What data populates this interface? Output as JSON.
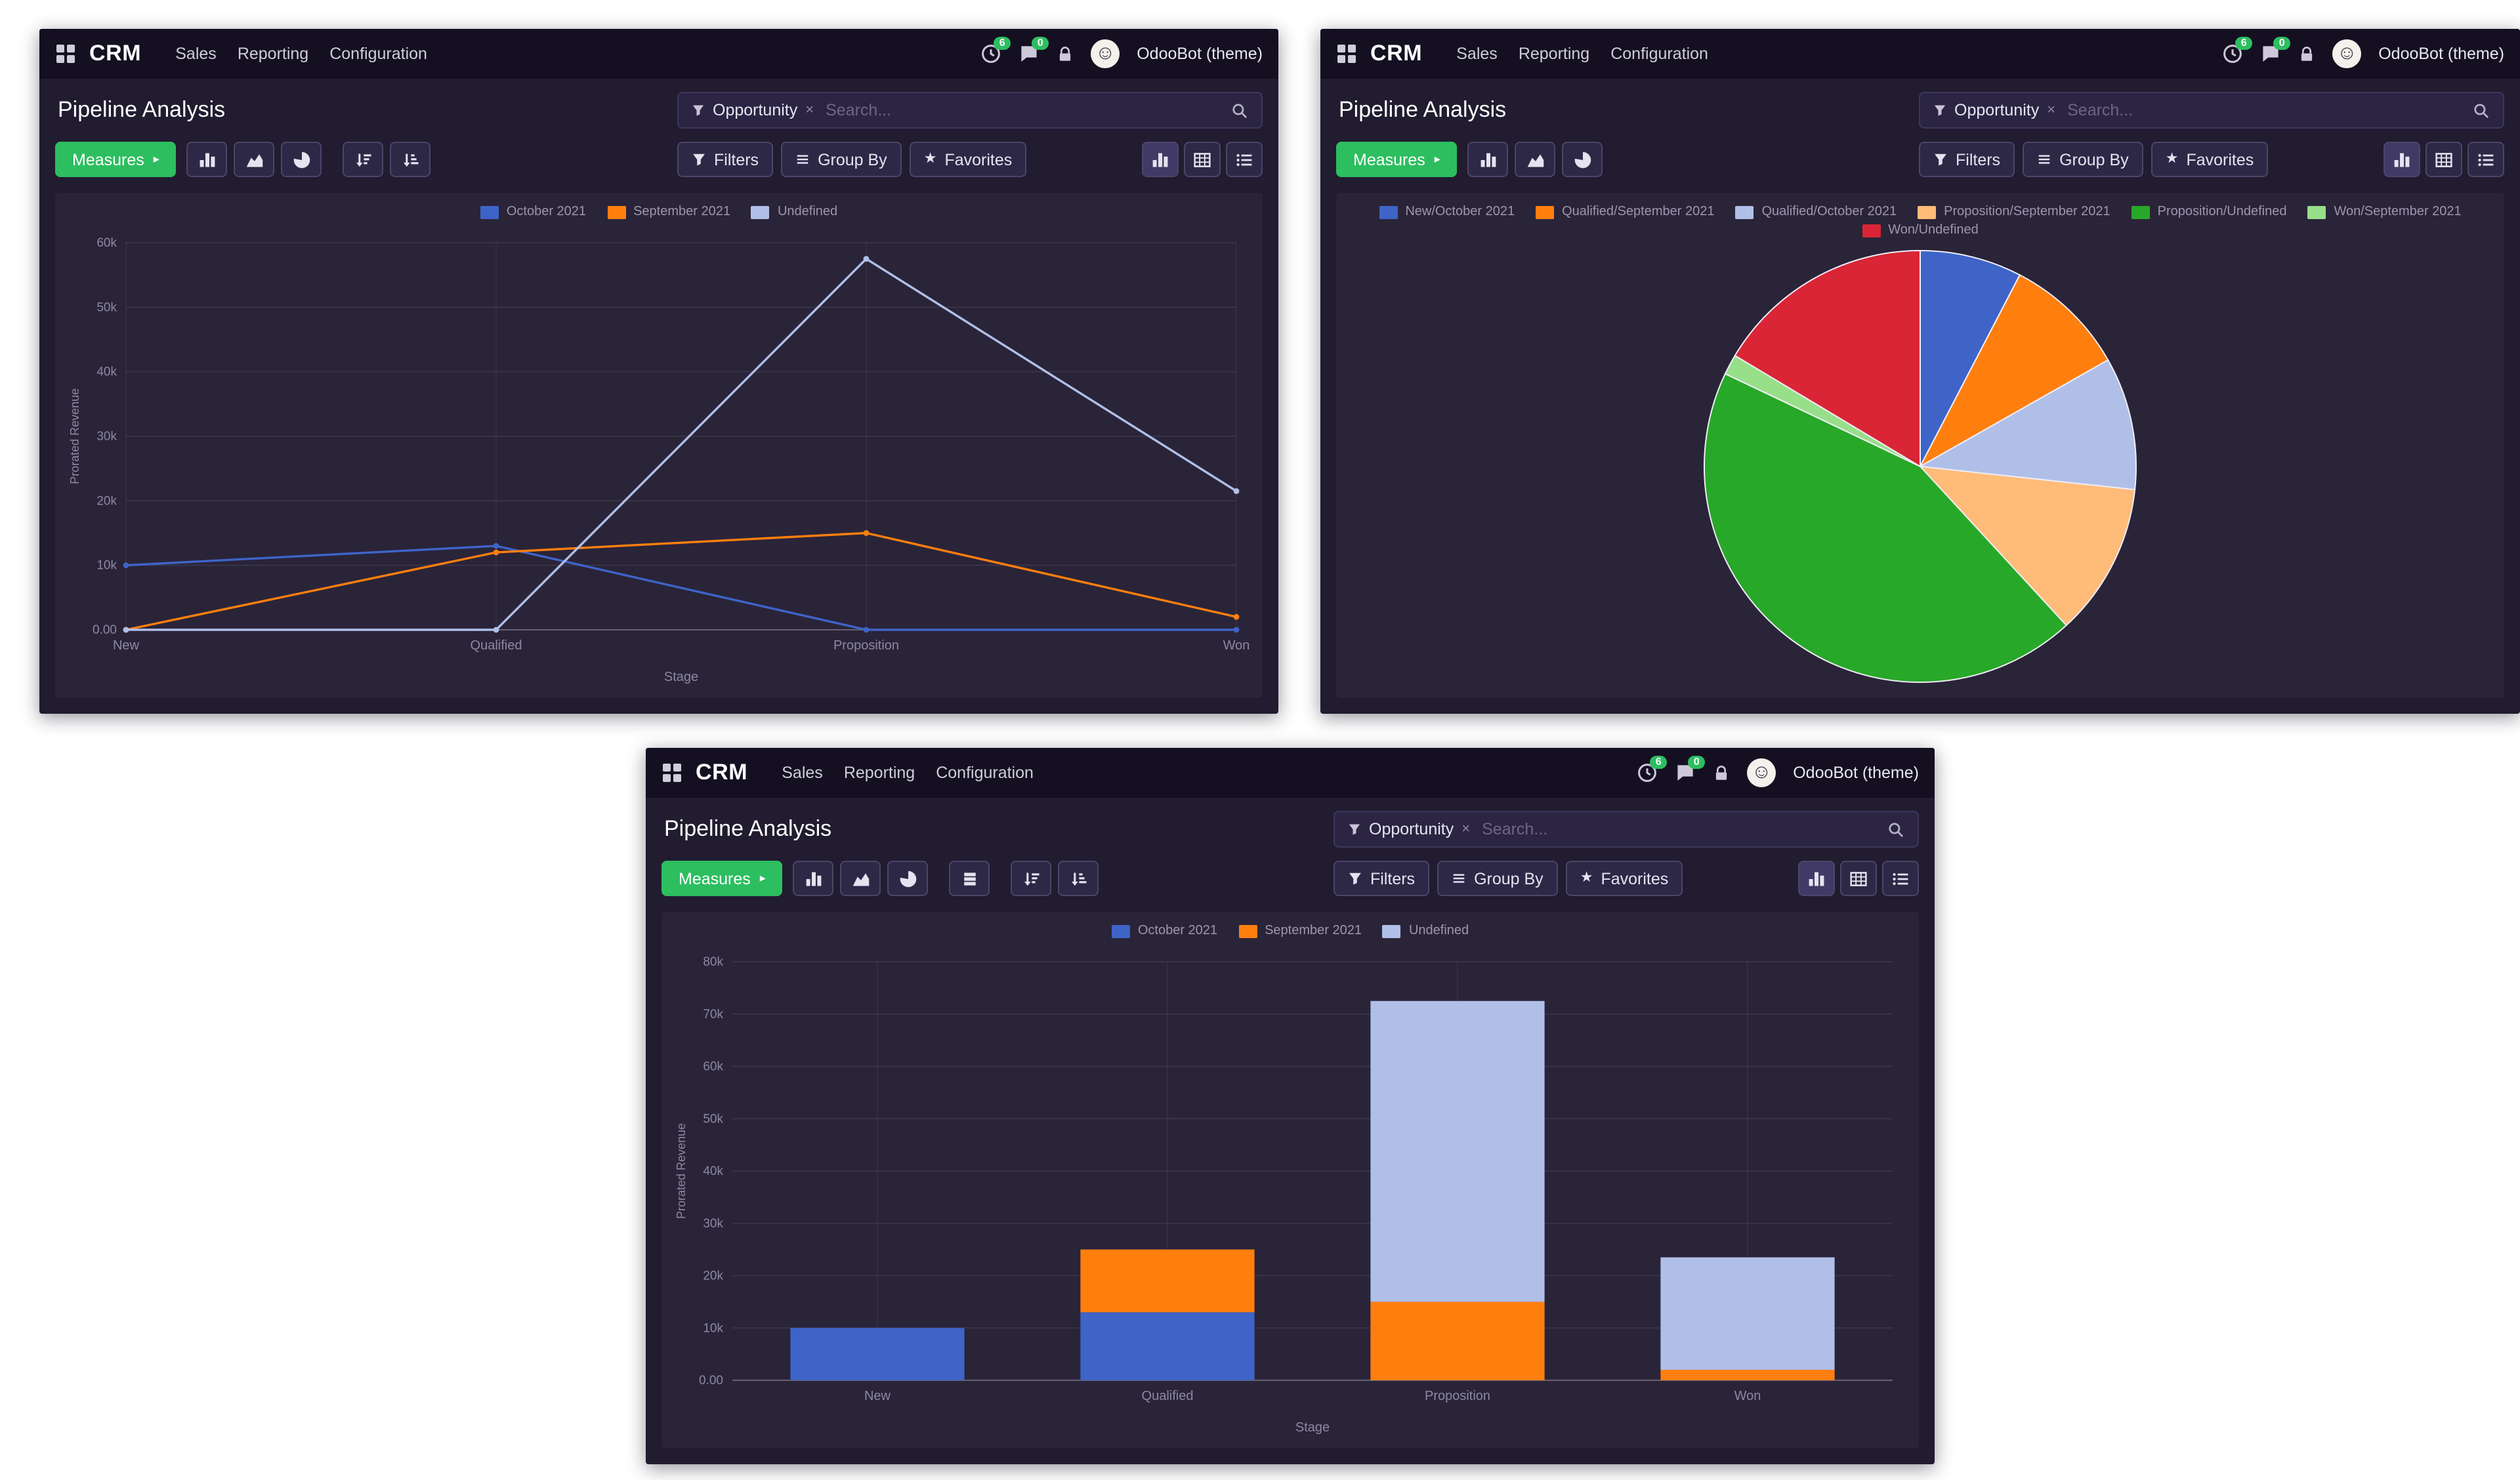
{
  "common": {
    "app_name": "CRM",
    "menus": [
      "Sales",
      "Reporting",
      "Configuration"
    ],
    "systray": {
      "badges": [
        "6",
        "0"
      ]
    },
    "user_name": "OdooBot (theme)",
    "page_title": "Pipeline Analysis",
    "search": {
      "facet": "Opportunity",
      "placeholder": "Search...",
      "remove_symbol": "×"
    },
    "toolbar": {
      "measures": "Measures",
      "measures_caret": "▸",
      "filters": "Filters",
      "group_by": "Group By",
      "favorites": "Favorites",
      "favorites_star": "★"
    },
    "colors": {
      "accent_green": "#2dbe60",
      "navbar_bg": "#141021",
      "content_bg": "#211c2f",
      "panel_bg": "#2a2439",
      "series_blue": "#3e64c8",
      "series_orange": "#ff7f0e",
      "series_lightblue": "#b0bfe8",
      "series_peach": "#ffbb78",
      "series_green": "#28a828",
      "series_lightgreen": "#98df8a",
      "series_red": "#d92535"
    }
  },
  "icons": {
    "avatar_face": "☺",
    "apps-menu-icon": "grid-of-squares",
    "activities-icon": "clock",
    "messages-icon": "chat-bubble",
    "lock-icon": "padlock",
    "search-icon": "magnifier",
    "facet-filter-icon": "funnel",
    "filter-icon": "funnel",
    "group-by-icon": "horizontal-bars",
    "star-icon": "star",
    "bar-chart-icon": "vertical-bars",
    "line-chart-icon": "area-curve",
    "pie-chart-icon": "pie",
    "stacked-icon": "stacked-layers",
    "sort-desc-icon": "arrow-down-bars-descending",
    "sort-asc-icon": "arrow-down-bars-ascending",
    "pivot-view-icon": "table-grid",
    "list-view-icon": "bulleted-list"
  },
  "windows": [
    {
      "name": "line-chart-window",
      "chart_data": {
        "type": "line",
        "title": "",
        "categories": [
          "New",
          "Qualified",
          "Proposition",
          "Won"
        ],
        "series": [
          {
            "name": "October 2021",
            "color": "#3e64c8",
            "values": [
              10000,
              13000,
              0,
              0
            ]
          },
          {
            "name": "September 2021",
            "color": "#ff7f0e",
            "values": [
              0,
              12000,
              15000,
              2000
            ]
          },
          {
            "name": "Undefined",
            "color": "#b0bfe8",
            "values": [
              0,
              0,
              57500,
              21500
            ]
          }
        ],
        "xlabel": "Stage",
        "ylabel": "Prorated Revenue",
        "ylim": [
          0,
          60000
        ],
        "yticks": [
          {
            "v": 0,
            "label": "0.00"
          },
          {
            "v": 10000,
            "label": "10k"
          },
          {
            "v": 20000,
            "label": "20k"
          },
          {
            "v": 30000,
            "label": "30k"
          },
          {
            "v": 40000,
            "label": "40k"
          },
          {
            "v": 50000,
            "label": "50k"
          },
          {
            "v": 60000,
            "label": "60k"
          }
        ],
        "grid": true,
        "legend_position": "top"
      }
    },
    {
      "name": "pie-chart-window",
      "chart_data": {
        "type": "pie",
        "title": "",
        "slices": [
          {
            "name": "New/October 2021",
            "color": "#3e64c8",
            "value": 10000
          },
          {
            "name": "Qualified/September 2021",
            "color": "#ff7f0e",
            "value": 12000
          },
          {
            "name": "Qualified/October 2021",
            "color": "#b0bfe8",
            "value": 13000
          },
          {
            "name": "Proposition/September 2021",
            "color": "#ffbb78",
            "value": 15000
          },
          {
            "name": "Proposition/Undefined",
            "color": "#28a828",
            "value": 57500
          },
          {
            "name": "Won/September 2021",
            "color": "#98df8a",
            "value": 2000
          },
          {
            "name": "Won/Undefined",
            "color": "#d92535",
            "value": 21500
          }
        ],
        "legend_position": "top"
      }
    },
    {
      "name": "bar-chart-window",
      "chart_data": {
        "type": "bar",
        "title": "",
        "stacked": true,
        "categories": [
          "New",
          "Qualified",
          "Proposition",
          "Won"
        ],
        "series": [
          {
            "name": "October 2021",
            "color": "#3e64c8",
            "values": [
              10000,
              13000,
              0,
              0
            ]
          },
          {
            "name": "September 2021",
            "color": "#ff7f0e",
            "values": [
              0,
              12000,
              15000,
              2000
            ]
          },
          {
            "name": "Undefined",
            "color": "#b0bfe8",
            "values": [
              0,
              0,
              57500,
              21500
            ]
          }
        ],
        "xlabel": "Stage",
        "ylabel": "Prorated Revenue",
        "ylim": [
          0,
          80000
        ],
        "yticks": [
          {
            "v": 0,
            "label": "0.00"
          },
          {
            "v": 10000,
            "label": "10k"
          },
          {
            "v": 20000,
            "label": "20k"
          },
          {
            "v": 30000,
            "label": "30k"
          },
          {
            "v": 40000,
            "label": "40k"
          },
          {
            "v": 50000,
            "label": "50k"
          },
          {
            "v": 60000,
            "label": "60k"
          },
          {
            "v": 70000,
            "label": "70k"
          },
          {
            "v": 80000,
            "label": "80k"
          }
        ],
        "grid": true,
        "legend_position": "top"
      }
    }
  ]
}
